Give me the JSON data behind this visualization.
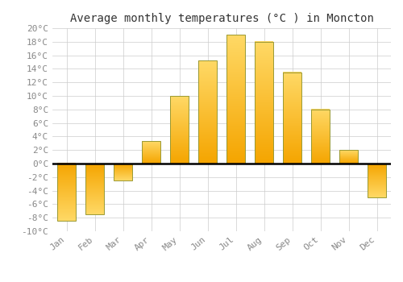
{
  "title": "Average monthly temperatures (°C ) in Moncton",
  "months": [
    "Jan",
    "Feb",
    "Mar",
    "Apr",
    "May",
    "Jun",
    "Jul",
    "Aug",
    "Sep",
    "Oct",
    "Nov",
    "Dec"
  ],
  "values": [
    -8.5,
    -7.5,
    -2.5,
    3.3,
    10.0,
    15.2,
    19.0,
    18.0,
    13.5,
    8.0,
    2.0,
    -5.0
  ],
  "bar_color_light": "#FFD966",
  "bar_color_dark": "#F5A500",
  "bar_edge_color": "#999933",
  "ylim": [
    -10,
    20
  ],
  "yticks": [
    -10,
    -8,
    -6,
    -4,
    -2,
    0,
    2,
    4,
    6,
    8,
    10,
    12,
    14,
    16,
    18,
    20
  ],
  "ytick_labels": [
    "-10°C",
    "-8°C",
    "-6°C",
    "-4°C",
    "-2°C",
    "0°C",
    "2°C",
    "4°C",
    "6°C",
    "8°C",
    "10°C",
    "12°C",
    "14°C",
    "16°C",
    "18°C",
    "20°C"
  ],
  "background_color": "#ffffff",
  "grid_color": "#cccccc",
  "title_fontsize": 10,
  "tick_fontsize": 8
}
